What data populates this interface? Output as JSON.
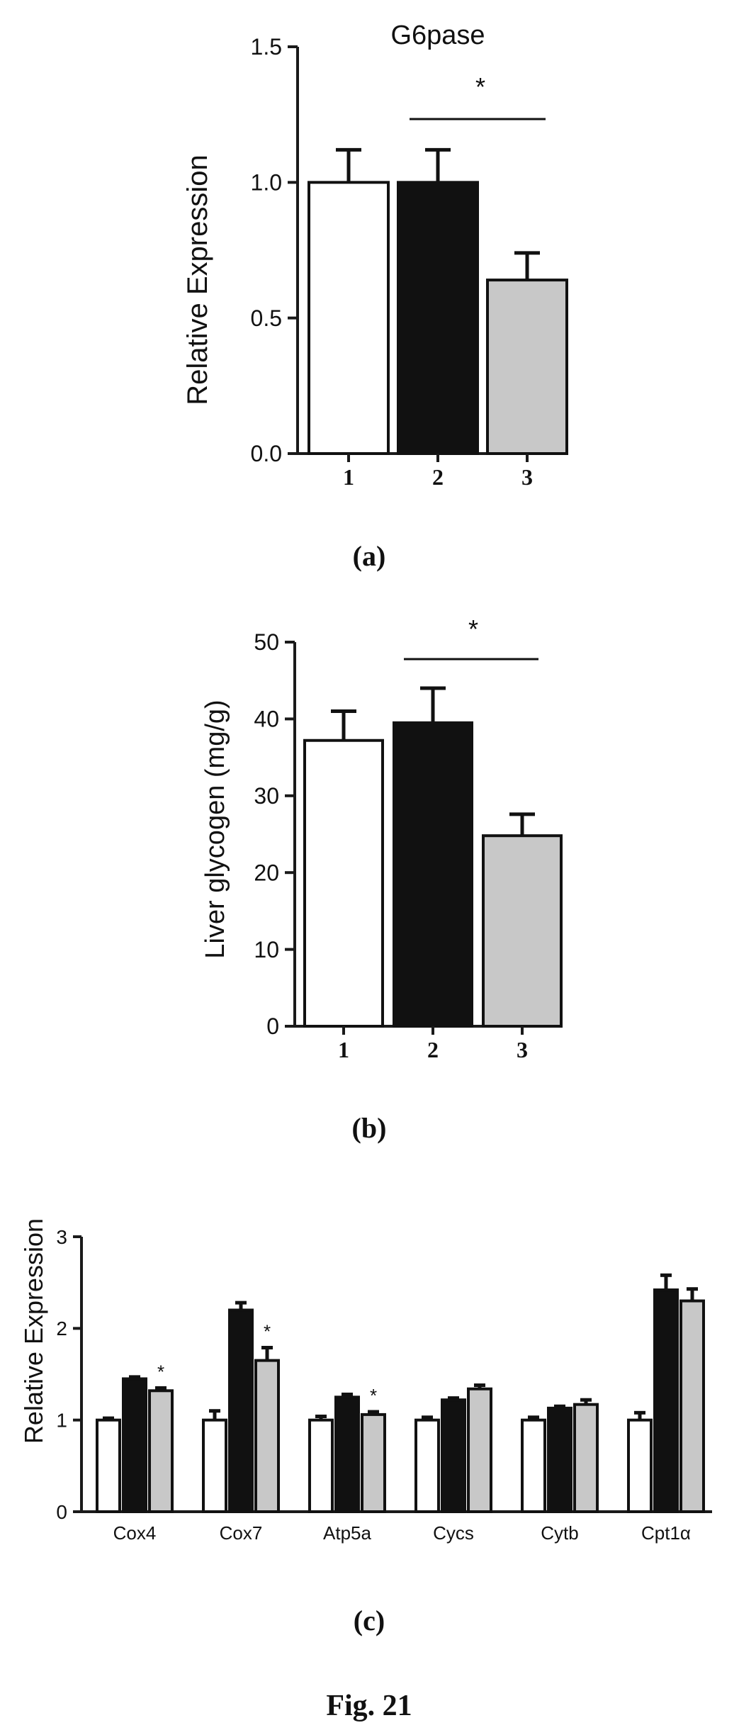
{
  "chart_data": [
    {
      "type": "bar",
      "panel": "(a)",
      "title": "G6pase",
      "ylabel": "Relative Expression",
      "ylim": [
        0,
        1.5
      ],
      "yticks": [
        "0.0",
        "0.5",
        "1.0",
        "1.5"
      ],
      "categories": [
        "1",
        "2",
        "3"
      ],
      "values": [
        1.0,
        1.0,
        0.64
      ],
      "errors": [
        0.12,
        0.12,
        0.1
      ],
      "bar_colors": [
        "#ffffff",
        "#111111",
        "#c8c8c8"
      ],
      "significance": {
        "from": "2",
        "to": "3",
        "label": "*"
      }
    },
    {
      "type": "bar",
      "panel": "(b)",
      "title": "",
      "ylabel": "Liver glycogen (mg/g)",
      "ylim": [
        0,
        50
      ],
      "yticks": [
        "0",
        "10",
        "20",
        "30",
        "40",
        "50"
      ],
      "categories": [
        "1",
        "2",
        "3"
      ],
      "values": [
        37.2,
        39.5,
        24.8
      ],
      "errors": [
        3.8,
        4.5,
        2.8
      ],
      "bar_colors": [
        "#ffffff",
        "#111111",
        "#c8c8c8"
      ],
      "significance": {
        "from": "2",
        "to": "3",
        "label": "*"
      }
    },
    {
      "type": "bar",
      "panel": "(c)",
      "title": "",
      "ylabel": "Relative Expression",
      "ylim": [
        0,
        3
      ],
      "yticks": [
        "0",
        "1",
        "2",
        "3"
      ],
      "categories": [
        "Cox4",
        "Cox7",
        "Atp5a",
        "Cycs",
        "Cytb",
        "Cpt1α"
      ],
      "series": [
        {
          "values": [
            1.0,
            1.0,
            1.0,
            1.0,
            1.0,
            1.0
          ],
          "errors": [
            0.02,
            0.1,
            0.04,
            0.03,
            0.03,
            0.08
          ],
          "color": "#ffffff"
        },
        {
          "values": [
            1.45,
            2.2,
            1.25,
            1.22,
            1.13,
            2.42
          ],
          "errors": [
            0.02,
            0.08,
            0.03,
            0.02,
            0.02,
            0.16
          ],
          "color": "#111111"
        },
        {
          "values": [
            1.32,
            1.65,
            1.06,
            1.34,
            1.17,
            2.3
          ],
          "errors": [
            0.03,
            0.14,
            0.03,
            0.04,
            0.05,
            0.13
          ],
          "color": "#c8c8c8"
        }
      ],
      "annotations": [
        {
          "category": "Cox4",
          "series": 2,
          "label": "*"
        },
        {
          "category": "Cox7",
          "series": 2,
          "label": "*"
        },
        {
          "category": "Atp5a",
          "series": 2,
          "label": "*"
        }
      ]
    }
  ],
  "figure_caption": "Fig. 21"
}
